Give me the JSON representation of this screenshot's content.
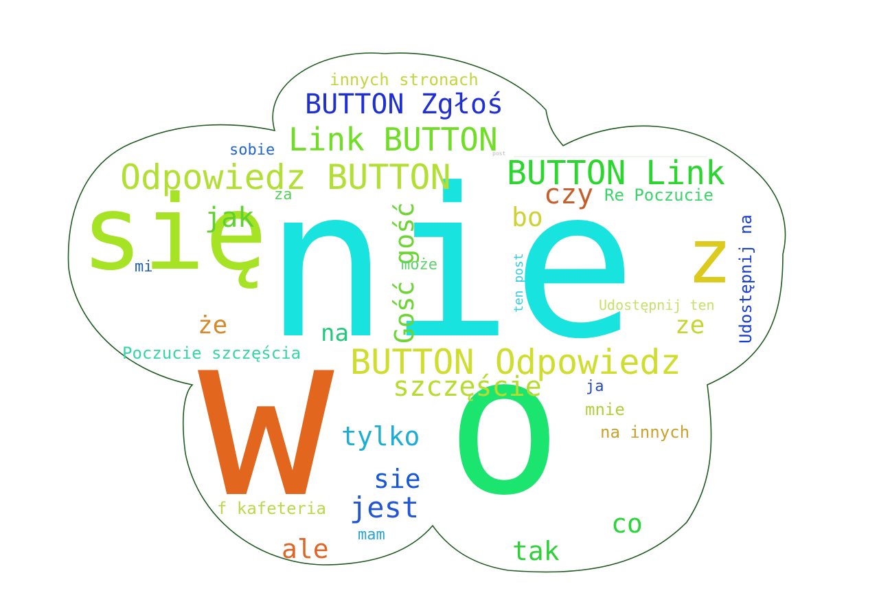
{
  "words": [
    {
      "text": "nie",
      "color": "#19e3df"
    },
    {
      "text": "w",
      "color": "#e2661e"
    },
    {
      "text": "o",
      "color": "#1ce56f"
    },
    {
      "text": "się",
      "color": "#a7e325"
    },
    {
      "text": "z",
      "color": "#dcca1d"
    },
    {
      "text": "BUTTON Odpowiedz",
      "color": "#cfdd2f"
    },
    {
      "text": "Odpowiedz BUTTON",
      "color": "#b2df33"
    },
    {
      "text": "BUTTON Link",
      "color": "#2bd62e"
    },
    {
      "text": "Link BUTTON",
      "color": "#6fde24"
    },
    {
      "text": "BUTTON Zgłoś",
      "color": "#1f2fd6"
    },
    {
      "text": "Gość gość",
      "color": "#6cd435"
    },
    {
      "text": "szczęście",
      "color": "#b6dc2f"
    },
    {
      "text": "jest",
      "color": "#2256d6"
    },
    {
      "text": "tylko",
      "color": "#1cadd6"
    },
    {
      "text": "sie",
      "color": "#1557d8"
    },
    {
      "text": "ale",
      "color": "#dd6627"
    },
    {
      "text": "tak",
      "color": "#2fd13a"
    },
    {
      "text": "co",
      "color": "#28d63a"
    },
    {
      "text": "czy",
      "color": "#c55e2b"
    },
    {
      "text": "jak",
      "color": "#5fd12e"
    },
    {
      "text": "bo",
      "color": "#cfd234"
    },
    {
      "text": "na",
      "color": "#21c97a"
    },
    {
      "text": "że",
      "color": "#d48a2a"
    },
    {
      "text": "ze",
      "color": "#c5d631"
    },
    {
      "text": "Poczucie szczęścia",
      "color": "#35d6a4"
    },
    {
      "text": "innych stronach",
      "color": "#c2d63e"
    },
    {
      "text": "Re Poczucie",
      "color": "#3ad46b"
    },
    {
      "text": "Udostępnij na",
      "color": "#1a3fd4"
    },
    {
      "text": "Udostępnij ten",
      "color": "#c7e069"
    },
    {
      "text": "na innych",
      "color": "#c9a12b"
    },
    {
      "text": "f kafeteria",
      "color": "#b8d94a"
    },
    {
      "text": "sobie",
      "color": "#2165d0"
    },
    {
      "text": "mnie",
      "color": "#b2cf3a"
    },
    {
      "text": "ja",
      "color": "#2447c9"
    },
    {
      "text": "mam",
      "color": "#26a4d4"
    },
    {
      "text": "może",
      "color": "#5cd36a"
    },
    {
      "text": "mi",
      "color": "#1e5fb8"
    },
    {
      "text": "za",
      "color": "#57cf5a"
    },
    {
      "text": "ten post",
      "color": "#2fcfe0"
    },
    {
      "text": "post",
      "color": "#b8b8b8"
    }
  ]
}
